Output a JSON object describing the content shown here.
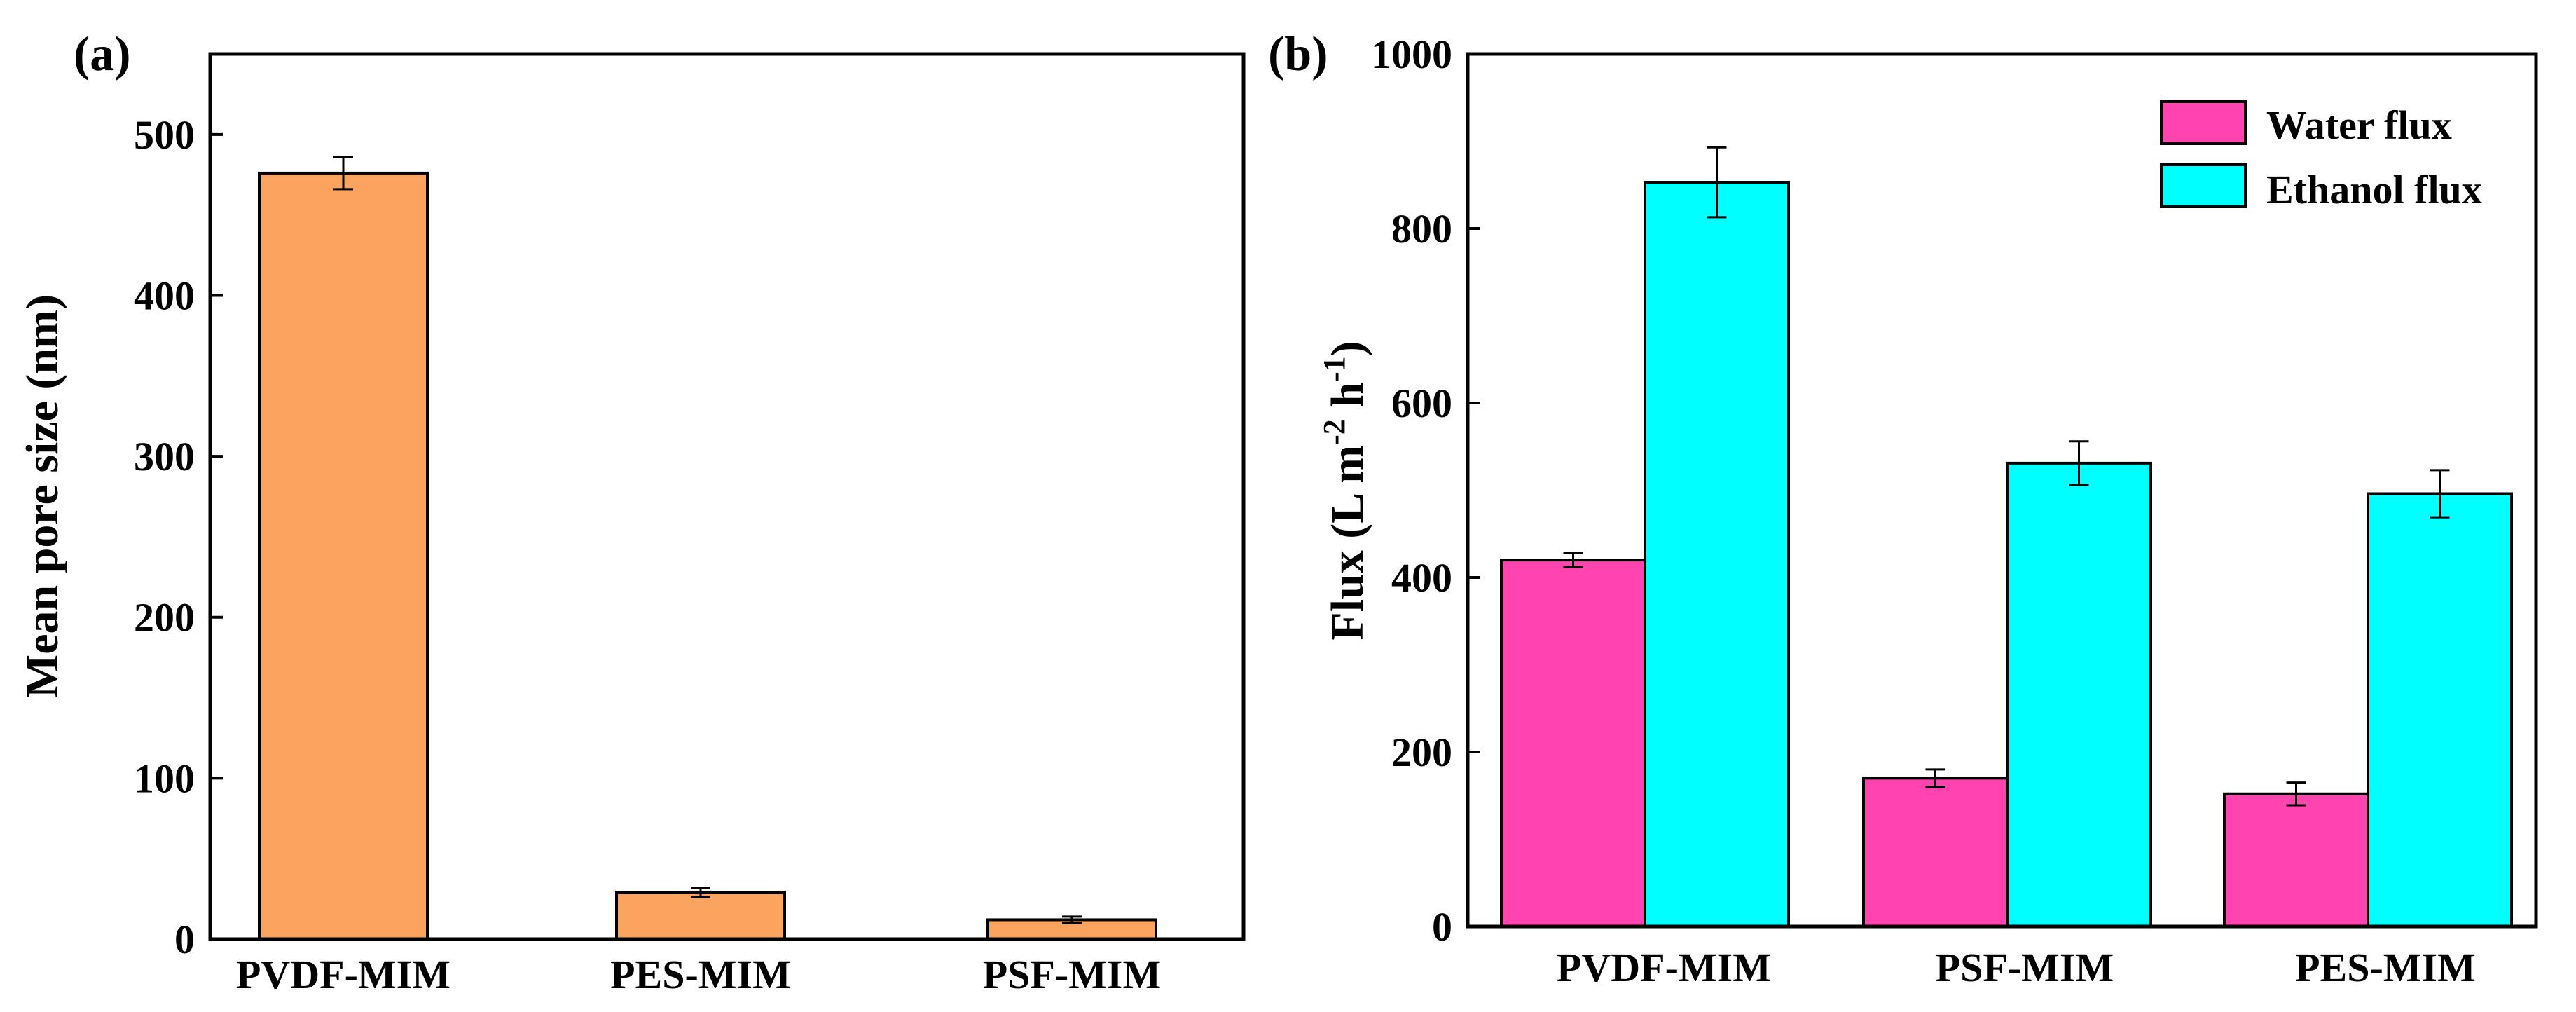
{
  "chart_data": [
    {
      "panel_label": "(a)",
      "type": "bar",
      "categories": [
        "PVDF-MIM",
        "PES-MIM",
        "PSF-MIM"
      ],
      "series": [
        {
          "name": "Mean pore size",
          "values": [
            476,
            29,
            12
          ],
          "errors": [
            10,
            3,
            2
          ],
          "color": "#FAA460"
        }
      ],
      "title": "",
      "xlabel": "",
      "ylabel": "Mean pore size (nm)",
      "ylim": [
        0,
        550
      ],
      "yticks": [
        0,
        100,
        200,
        300,
        400,
        500
      ],
      "legend": false
    },
    {
      "panel_label": "(b)",
      "type": "bar",
      "categories": [
        "PVDF-MIM",
        "PSF-MIM",
        "PES-MIM"
      ],
      "series": [
        {
          "name": "Water flux",
          "values": [
            420,
            170,
            152
          ],
          "errors": [
            8,
            10,
            13
          ],
          "color": "#FF44B0"
        },
        {
          "name": "Ethanol flux",
          "values": [
            853,
            531,
            496
          ],
          "errors": [
            40,
            25,
            27
          ],
          "color": "#00FFFF"
        }
      ],
      "title": "",
      "xlabel": "",
      "ylabel": "Flux (L m-2 h-1)",
      "ylabel_parts": {
        "main_1": "Flux (L m",
        "sup_1": "-2",
        "main_2": " h",
        "sup_2": "-1",
        "main_3": ")"
      },
      "ylim": [
        0,
        1000
      ],
      "yticks": [
        0,
        200,
        400,
        600,
        800,
        1000
      ],
      "legend": "top-right"
    }
  ]
}
